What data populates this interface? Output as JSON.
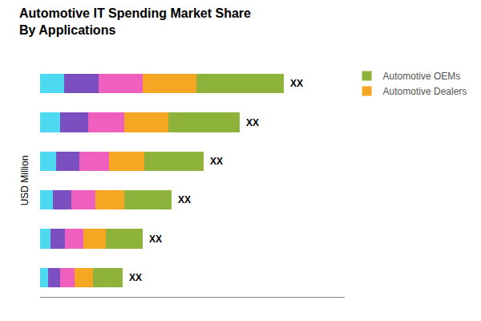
{
  "chart_data": {
    "type": "bar",
    "orientation": "horizontal",
    "stacked": true,
    "title": "Automotive IT Spending Market Share\nBy Applications",
    "ylabel": "USD Million",
    "categories": [
      null,
      null,
      null,
      null,
      null,
      null
    ],
    "series": [
      {
        "color": "#4DD9F0",
        "values": [
          1.0,
          0.82,
          0.67,
          0.54,
          0.42,
          0.34
        ]
      },
      {
        "color": "#7B4FC0",
        "values": [
          1.4,
          1.148,
          0.938,
          0.756,
          0.588,
          0.476
        ]
      },
      {
        "color": "#EE5FBE",
        "values": [
          1.8,
          1.476,
          1.206,
          0.972,
          0.756,
          0.612
        ]
      },
      {
        "name": "Automotive Dealers",
        "color": "#F5A623",
        "values": [
          2.2,
          1.804,
          1.474,
          1.188,
          0.924,
          0.748
        ]
      },
      {
        "name": "Automotive OEMs",
        "color": "#8DB33A",
        "values": [
          3.6,
          2.952,
          2.412,
          1.944,
          1.512,
          1.224
        ]
      }
    ],
    "annotations": [
      "XX",
      "XX",
      "XX",
      "XX",
      "XX",
      "XX"
    ],
    "xlim": [
      0,
      12.5
    ],
    "tick_labels": false,
    "grid": false,
    "legend": "upper right"
  }
}
